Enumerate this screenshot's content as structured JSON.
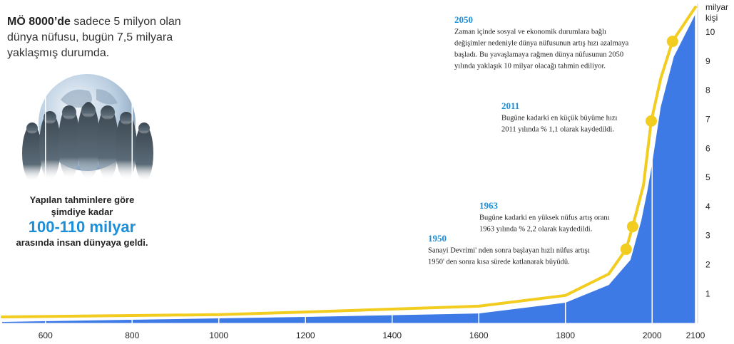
{
  "chart_data": {
    "type": "area",
    "intro": {
      "bold": "MÖ 8000’de",
      "rest": "sadece 5 milyon olan dünya nüfusu, bugün 7,5 milyara yaklaşmış durumda."
    },
    "note": {
      "line1": "Yapılan tahminlere göre",
      "line2": "şimdiye kadar",
      "highlight": "100-110 milyar",
      "line3": "arasında insan dünyaya geldi."
    },
    "y_unit": [
      "milyar",
      "kişi"
    ],
    "series": [
      {
        "color": "#3d7ae6",
        "x": [
          500,
          1200,
          1600,
          1800,
          1900,
          1950,
          1975,
          1990,
          2000,
          2020,
          2050,
          2100
        ],
        "values": [
          0.05,
          0.22,
          0.34,
          0.71,
          1.32,
          2.18,
          3.53,
          4.63,
          5.5,
          7.45,
          9.17,
          10.64
        ]
      },
      {
        "color": "#f2cc1f",
        "x": [
          500,
          1000,
          1200,
          1600,
          1800,
          1900,
          1940,
          1955,
          1980,
          1998,
          2020,
          2047,
          2100
        ],
        "values": [
          0.22,
          0.3,
          0.39,
          0.59,
          0.96,
          1.7,
          2.55,
          3.33,
          4.75,
          6.96,
          8.43,
          9.7,
          10.88
        ]
      }
    ],
    "annotations": [
      {
        "label": "1950",
        "x": 1940,
        "y": 2.55,
        "lines": [
          "Sanayi Devrimi' nden sonra başlayan hızlı nüfus artışı",
          "1950' den sonra kısa sürede katlanarak büyüdü."
        ]
      },
      {
        "label": "1963",
        "x": 1955,
        "y": 3.33,
        "lines": [
          "Bugüne kadarki en yüksek nüfus artış oranı",
          "1963 yılında % 2,2 olarak kaydedildi."
        ]
      },
      {
        "label": "2011",
        "x": 1998,
        "y": 6.96,
        "lines": [
          "Bugüne kadarki en küçük büyüme hızı",
          "2011 yılında % 1,1 olarak kaydedildi."
        ]
      },
      {
        "label": "2050",
        "x": 2047,
        "y": 9.7,
        "lines": [
          "Zaman içinde sosyal ve ekonomik durumlara bağlı",
          "değişimler nedeniyle dünya nüfusunun artış hızı azalmaya",
          "başladı. Bu yavaşlamaya rağmen dünya nüfusunun 2050",
          "yılında yaklaşık 10 milyar olacağı tahmin ediliyor."
        ]
      }
    ],
    "marker_color": "#f2cc1f",
    "annotation_label_color": "#1b8fd8",
    "xlim": [
      500,
      2105
    ],
    "ylim": [
      0,
      11
    ],
    "xticks": [
      600,
      800,
      1000,
      1200,
      1400,
      1600,
      1800,
      2000,
      2100
    ],
    "yticks": [
      1,
      2,
      3,
      4,
      5,
      6,
      7,
      8,
      9,
      10
    ],
    "grid": true
  }
}
